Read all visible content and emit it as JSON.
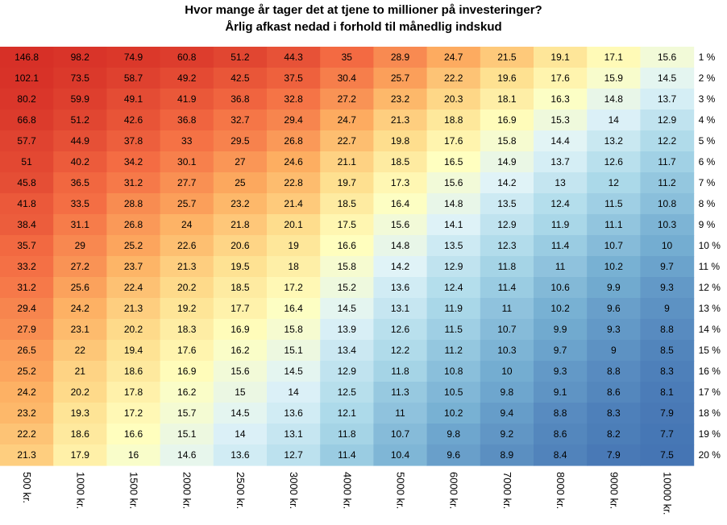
{
  "chart_data": {
    "type": "heatmap",
    "title": "Hvor mange år tager det at tjene to millioner på investeringer?",
    "subtitle": "Årlig afkast nedad i forhold til månedlig indskud",
    "xlabel": "",
    "ylabel": "",
    "x_categories": [
      "500 kr.",
      "1000 kr.",
      "1500 kr.",
      "2000 kr.",
      "2500 kr.",
      "3000 kr.",
      "4000 kr.",
      "5000 kr.",
      "6000 kr.",
      "7000 kr.",
      "8000 kr.",
      "9000 kr.",
      "10000 kr."
    ],
    "y_categories": [
      "1 %",
      "2 %",
      "3 %",
      "4 %",
      "5 %",
      "6 %",
      "7 %",
      "8 %",
      "9 %",
      "10 %",
      "11 %",
      "12 %",
      "13 %",
      "14 %",
      "15 %",
      "16 %",
      "17 %",
      "18 %",
      "19 %",
      "20 %"
    ],
    "values": [
      [
        "146.8",
        "98.2",
        "74.9",
        "60.8",
        "51.2",
        "44.3",
        "35",
        "28.9",
        "24.7",
        "21.5",
        "19.1",
        "17.1",
        "15.6"
      ],
      [
        "102.1",
        "73.5",
        "58.7",
        "49.2",
        "42.5",
        "37.5",
        "30.4",
        "25.7",
        "22.2",
        "19.6",
        "17.6",
        "15.9",
        "14.5"
      ],
      [
        "80.2",
        "59.9",
        "49.1",
        "41.9",
        "36.8",
        "32.8",
        "27.2",
        "23.2",
        "20.3",
        "18.1",
        "16.3",
        "14.8",
        "13.7"
      ],
      [
        "66.8",
        "51.2",
        "42.6",
        "36.8",
        "32.7",
        "29.4",
        "24.7",
        "21.3",
        "18.8",
        "16.9",
        "15.3",
        "14",
        "12.9"
      ],
      [
        "57.7",
        "44.9",
        "37.8",
        "33",
        "29.5",
        "26.8",
        "22.7",
        "19.8",
        "17.6",
        "15.8",
        "14.4",
        "13.2",
        "12.2"
      ],
      [
        "51",
        "40.2",
        "34.2",
        "30.1",
        "27",
        "24.6",
        "21.1",
        "18.5",
        "16.5",
        "14.9",
        "13.7",
        "12.6",
        "11.7"
      ],
      [
        "45.8",
        "36.5",
        "31.2",
        "27.7",
        "25",
        "22.8",
        "19.7",
        "17.3",
        "15.6",
        "14.2",
        "13",
        "12",
        "11.2"
      ],
      [
        "41.8",
        "33.5",
        "28.8",
        "25.7",
        "23.2",
        "21.4",
        "18.5",
        "16.4",
        "14.8",
        "13.5",
        "12.4",
        "11.5",
        "10.8"
      ],
      [
        "38.4",
        "31.1",
        "26.8",
        "24",
        "21.8",
        "20.1",
        "17.5",
        "15.6",
        "14.1",
        "12.9",
        "11.9",
        "11.1",
        "10.3"
      ],
      [
        "35.7",
        "29",
        "25.2",
        "22.6",
        "20.6",
        "19",
        "16.6",
        "14.8",
        "13.5",
        "12.3",
        "11.4",
        "10.7",
        "10"
      ],
      [
        "33.2",
        "27.2",
        "23.7",
        "21.3",
        "19.5",
        "18",
        "15.8",
        "14.2",
        "12.9",
        "11.8",
        "11",
        "10.2",
        "9.7"
      ],
      [
        "31.2",
        "25.6",
        "22.4",
        "20.2",
        "18.5",
        "17.2",
        "15.2",
        "13.6",
        "12.4",
        "11.4",
        "10.6",
        "9.9",
        "9.3"
      ],
      [
        "29.4",
        "24.2",
        "21.3",
        "19.2",
        "17.7",
        "16.4",
        "14.5",
        "13.1",
        "11.9",
        "11",
        "10.2",
        "9.6",
        "9"
      ],
      [
        "27.9",
        "23.1",
        "20.2",
        "18.3",
        "16.9",
        "15.8",
        "13.9",
        "12.6",
        "11.5",
        "10.7",
        "9.9",
        "9.3",
        "8.8"
      ],
      [
        "26.5",
        "22",
        "19.4",
        "17.6",
        "16.2",
        "15.1",
        "13.4",
        "12.2",
        "11.2",
        "10.3",
        "9.7",
        "9",
        "8.5"
      ],
      [
        "25.2",
        "21",
        "18.6",
        "16.9",
        "15.6",
        "14.5",
        "12.9",
        "11.8",
        "10.8",
        "10",
        "9.3",
        "8.8",
        "8.3"
      ],
      [
        "24.2",
        "20.2",
        "17.8",
        "16.2",
        "15",
        "14",
        "12.5",
        "11.3",
        "10.5",
        "9.8",
        "9.1",
        "8.6",
        "8.1"
      ],
      [
        "23.2",
        "19.3",
        "17.2",
        "15.7",
        "14.5",
        "13.6",
        "12.1",
        "11",
        "10.2",
        "9.4",
        "8.8",
        "8.3",
        "7.9"
      ],
      [
        "22.2",
        "18.6",
        "16.6",
        "15.1",
        "14",
        "13.1",
        "11.8",
        "10.7",
        "9.8",
        "9.2",
        "8.6",
        "8.2",
        "7.7"
      ],
      [
        "21.3",
        "17.9",
        "16",
        "14.6",
        "13.6",
        "12.7",
        "11.4",
        "10.4",
        "9.6",
        "8.9",
        "8.4",
        "7.9",
        "7.5"
      ]
    ],
    "colorscale": [
      "#d73027",
      "#f46d43",
      "#fdae61",
      "#fee090",
      "#ffffbf",
      "#e0f3f8",
      "#abd9e9",
      "#74add1",
      "#4575b4"
    ],
    "legend": "none",
    "grid": false
  }
}
